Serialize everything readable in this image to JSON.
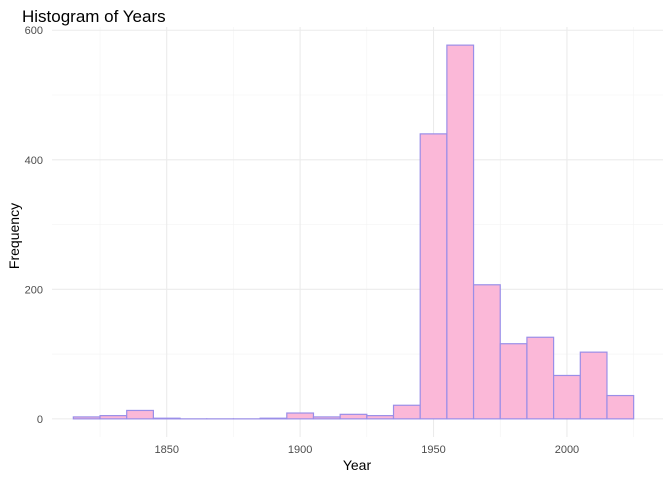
{
  "chart_data": {
    "type": "bar",
    "title": "Histogram of Years",
    "xlabel": "Year",
    "ylabel": "Frequency",
    "bin_width": 10,
    "bins": [
      {
        "start": 1815,
        "end": 1825,
        "count": 3
      },
      {
        "start": 1825,
        "end": 1835,
        "count": 5
      },
      {
        "start": 1835,
        "end": 1845,
        "count": 13
      },
      {
        "start": 1845,
        "end": 1855,
        "count": 1
      },
      {
        "start": 1855,
        "end": 1865,
        "count": 0
      },
      {
        "start": 1865,
        "end": 1875,
        "count": 0
      },
      {
        "start": 1875,
        "end": 1885,
        "count": 0
      },
      {
        "start": 1885,
        "end": 1895,
        "count": 1
      },
      {
        "start": 1895,
        "end": 1905,
        "count": 9
      },
      {
        "start": 1905,
        "end": 1915,
        "count": 3
      },
      {
        "start": 1915,
        "end": 1925,
        "count": 7
      },
      {
        "start": 1925,
        "end": 1935,
        "count": 5
      },
      {
        "start": 1935,
        "end": 1945,
        "count": 21
      },
      {
        "start": 1945,
        "end": 1955,
        "count": 440
      },
      {
        "start": 1955,
        "end": 1965,
        "count": 577
      },
      {
        "start": 1965,
        "end": 1975,
        "count": 207
      },
      {
        "start": 1975,
        "end": 1985,
        "count": 116
      },
      {
        "start": 1985,
        "end": 1995,
        "count": 126
      },
      {
        "start": 1995,
        "end": 2005,
        "count": 67
      },
      {
        "start": 2005,
        "end": 2015,
        "count": 103
      },
      {
        "start": 2015,
        "end": 2025,
        "count": 36
      }
    ],
    "x_ticks": [
      1850,
      1900,
      1950,
      2000
    ],
    "y_ticks": [
      0,
      200,
      400,
      600
    ],
    "xlim": [
      1807,
      2036
    ],
    "ylim": [
      -28,
      605
    ],
    "grid": true,
    "fill_color": "#fbb8d8",
    "stroke_color": "#9a8ee8",
    "grid_color": "#ebebeb"
  }
}
